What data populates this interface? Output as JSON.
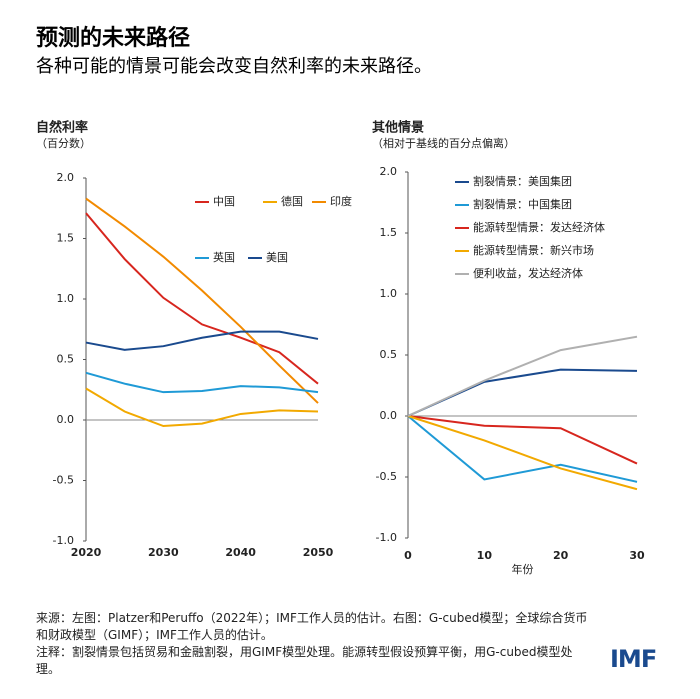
{
  "header": {
    "title": "预测的未来路径",
    "subtitle": "各种可能的情景可能会改变自然利率的未来路径。"
  },
  "chart_data": [
    {
      "type": "line",
      "title": "自然利率",
      "subtitle": "（百分数）",
      "x": [
        2020,
        2025,
        2030,
        2035,
        2040,
        2045,
        2050
      ],
      "xlim": [
        2020,
        2050
      ],
      "xticks": [
        2020,
        2030,
        2040,
        2050
      ],
      "ylim": [
        -1,
        2
      ],
      "yticks": [
        {
          "value": -1,
          "label": "-1.0"
        },
        -0.5,
        {
          "value": 0,
          "label": "0.0"
        },
        0.5,
        {
          "value": 1,
          "label": "1.0"
        },
        1.5,
        {
          "value": 2,
          "label": "2.0"
        }
      ],
      "series": [
        {
          "name": "中国",
          "color": "#d7261e",
          "values": [
            1.71,
            1.33,
            1.01,
            0.79,
            0.68,
            0.56,
            0.3
          ]
        },
        {
          "name": "德国",
          "color": "#f2a900",
          "values": [
            0.26,
            0.07,
            -0.05,
            -0.03,
            0.05,
            0.08,
            0.07
          ]
        },
        {
          "name": "印度",
          "color": "#f28a00",
          "values": [
            1.83,
            1.6,
            1.35,
            1.07,
            0.77,
            0.45,
            0.14
          ]
        },
        {
          "name": "英国",
          "color": "#1f9ad6",
          "values": [
            0.39,
            0.3,
            0.23,
            0.24,
            0.28,
            0.27,
            0.23
          ]
        },
        {
          "name": "美国",
          "color": "#1a4a8e",
          "values": [
            0.64,
            0.58,
            0.61,
            0.68,
            0.73,
            0.73,
            0.67
          ]
        }
      ]
    },
    {
      "type": "line",
      "title": "其他情景",
      "subtitle": "（相对于基线的百分点偏离）",
      "x_label": "年份",
      "x": [
        0,
        10,
        20,
        30
      ],
      "xlim": [
        0,
        30
      ],
      "xticks": [
        0,
        10,
        20,
        30
      ],
      "ylim": [
        -1,
        2
      ],
      "yticks": [
        {
          "value": -1,
          "label": "-1.0"
        },
        -0.5,
        {
          "value": 0,
          "label": "0.0"
        },
        0.5,
        {
          "value": 1,
          "label": "1.0"
        },
        1.5,
        {
          "value": 2,
          "label": "2.0"
        }
      ],
      "series": [
        {
          "name": "割裂情景：美国集团",
          "color": "#1a4a8e",
          "values": [
            0,
            0.28,
            0.38,
            0.37
          ]
        },
        {
          "name": "割裂情景：中国集团",
          "color": "#1f9ad6",
          "values": [
            0,
            -0.52,
            -0.4,
            -0.54
          ]
        },
        {
          "name": "能源转型情景：发达经济体",
          "color": "#d7261e",
          "values": [
            0,
            -0.08,
            -0.1,
            -0.39
          ]
        },
        {
          "name": "能源转型情景：新兴市场",
          "color": "#f2a900",
          "values": [
            0,
            -0.2,
            -0.43,
            -0.6
          ]
        },
        {
          "name": "便利收益，发达经济体",
          "color": "#b0b0b0",
          "values": [
            0,
            0.29,
            0.54,
            0.65
          ]
        }
      ]
    }
  ],
  "footer": {
    "source": "来源：左图：Platzer和Peruffo（2022年）；IMF工作人员的估计。右图：G-cubed模型；全球综合货币和财政模型（GIMF）；IMF工作人员的估计。",
    "note": "注释：割裂情景包括贸易和金融割裂，用GIMF模型处理。能源转型假设预算平衡，用G-cubed模型处理。",
    "logo": "IMF"
  }
}
